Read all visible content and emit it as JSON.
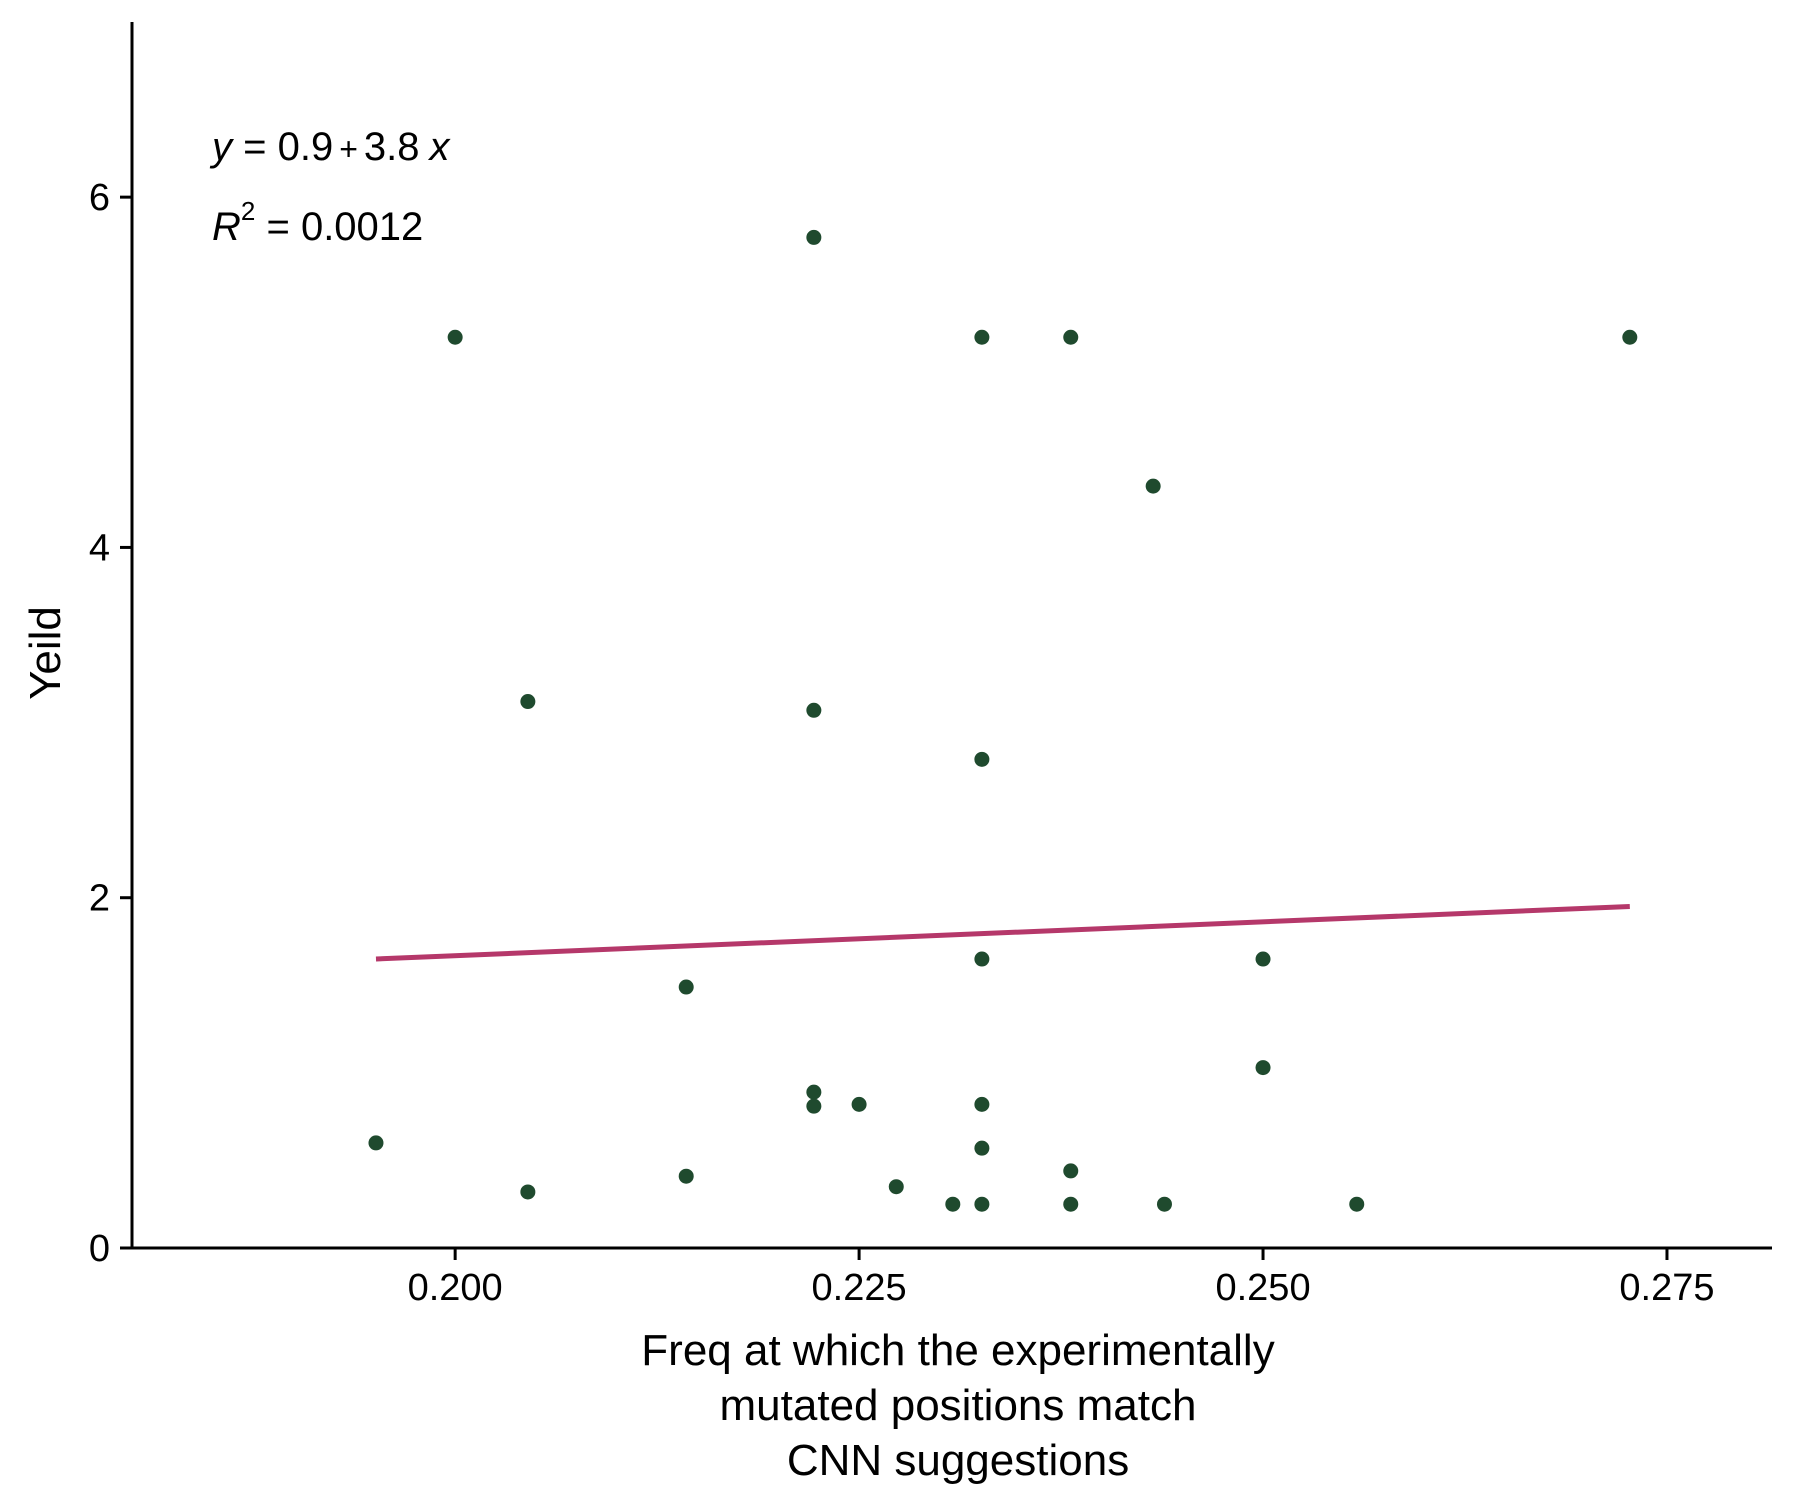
{
  "chart_data": {
    "type": "scatter",
    "xlabel": [
      "Freq at which the experimentally",
      "mutated positions match",
      "CNN suggestions"
    ],
    "ylabel": "Yeild",
    "xlim": [
      0.18,
      0.2815
    ],
    "ylim": [
      0,
      7.0
    ],
    "xticks": [
      0.2,
      0.225,
      0.25,
      0.275
    ],
    "xtick_labels": [
      "0.200",
      "0.225",
      "0.250",
      "0.275"
    ],
    "yticks": [
      0,
      2,
      4,
      6
    ],
    "ytick_labels": [
      "0",
      "2",
      "4",
      "6"
    ],
    "grid": false,
    "legend": "none",
    "equation": {
      "y_var": "y",
      "eq_rest": " = 0.9",
      "plus": "+",
      "eq_coef": "3.8",
      "x_var": "x",
      "r_var": "R",
      "r_sup": "2",
      "r_rest": " = 0.0012"
    },
    "points": [
      {
        "x": 0.1951,
        "y": 0.6
      },
      {
        "x": 0.2,
        "y": 5.2
      },
      {
        "x": 0.2045,
        "y": 3.12
      },
      {
        "x": 0.2045,
        "y": 0.32
      },
      {
        "x": 0.2143,
        "y": 1.49
      },
      {
        "x": 0.2143,
        "y": 0.41
      },
      {
        "x": 0.2222,
        "y": 5.77
      },
      {
        "x": 0.2222,
        "y": 3.07
      },
      {
        "x": 0.2222,
        "y": 0.89
      },
      {
        "x": 0.2222,
        "y": 0.81
      },
      {
        "x": 0.225,
        "y": 0.82
      },
      {
        "x": 0.2273,
        "y": 0.35
      },
      {
        "x": 0.2308,
        "y": 0.25
      },
      {
        "x": 0.2326,
        "y": 5.2
      },
      {
        "x": 0.2326,
        "y": 2.79
      },
      {
        "x": 0.2326,
        "y": 1.65
      },
      {
        "x": 0.2326,
        "y": 0.82
      },
      {
        "x": 0.2326,
        "y": 0.57
      },
      {
        "x": 0.2326,
        "y": 0.25
      },
      {
        "x": 0.2381,
        "y": 5.2
      },
      {
        "x": 0.2381,
        "y": 0.44
      },
      {
        "x": 0.2381,
        "y": 0.25
      },
      {
        "x": 0.2432,
        "y": 4.35
      },
      {
        "x": 0.2439,
        "y": 0.25
      },
      {
        "x": 0.25,
        "y": 1.65
      },
      {
        "x": 0.25,
        "y": 1.03
      },
      {
        "x": 0.2558,
        "y": 0.25
      },
      {
        "x": 0.2727,
        "y": 5.2
      }
    ],
    "fit_line": {
      "x": [
        0.1951,
        0.2727
      ],
      "y": [
        1.65,
        1.95
      ]
    },
    "colors": {
      "points": "#1f4a2e",
      "fit_line": "#b5386a",
      "axis": "#000000"
    }
  }
}
